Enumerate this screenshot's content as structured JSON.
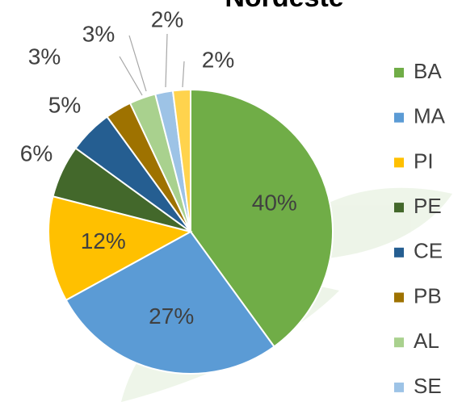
{
  "chart_data": {
    "type": "pie",
    "title": "Nordeste",
    "categories": [
      "BA",
      "MA",
      "PI",
      "PE",
      "CE",
      "PB",
      "AL",
      "SE",
      null
    ],
    "values": [
      40,
      27,
      12,
      6,
      5,
      3,
      3,
      2,
      2
    ],
    "value_labels": [
      "40%",
      "27%",
      "12%",
      "6%",
      "5%",
      "3%",
      "3%",
      "2%",
      "2%"
    ],
    "colors": [
      "#70ad47",
      "#5b9bd5",
      "#ffc000",
      "#43682b",
      "#255e91",
      "#9e7200",
      "#a9d18e",
      "#9dc3e6",
      "#ffd34d"
    ],
    "legend": "right"
  }
}
